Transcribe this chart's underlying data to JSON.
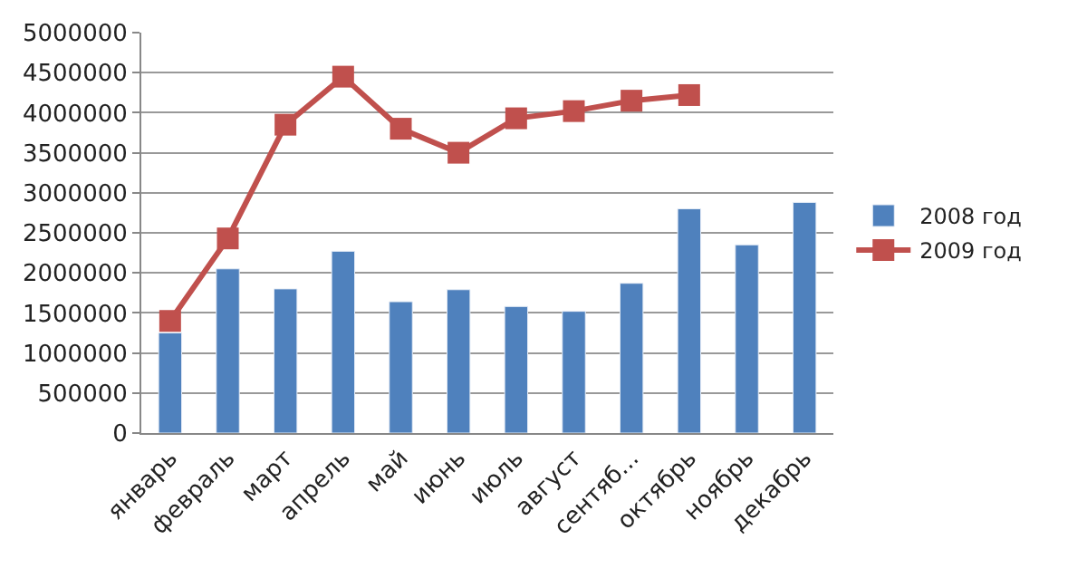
{
  "chart_data": {
    "type": "bar",
    "categories": [
      "январь",
      "февраль",
      "март",
      "апрель",
      "май",
      "июнь",
      "июль",
      "август",
      "сентяб...",
      "октябрь",
      "ноябрь",
      "декабрь"
    ],
    "series": [
      {
        "name": "2008 год",
        "color": "#4f81bd",
        "values": [
          1250000,
          2050000,
          1800000,
          2270000,
          1640000,
          1790000,
          1580000,
          1520000,
          1870000,
          2800000,
          2350000,
          2880000
        ]
      },
      {
        "name": "2009 год",
        "type": "line",
        "color": "#c0504d",
        "marker": "square",
        "values": [
          1400000,
          2430000,
          3850000,
          4450000,
          3800000,
          3500000,
          3930000,
          4020000,
          4150000,
          4220000,
          null,
          null
        ]
      }
    ],
    "ylim": [
      0,
      5000000
    ],
    "yticks": [
      0,
      500000,
      1000000,
      1500000,
      2000000,
      2500000,
      3000000,
      3500000,
      4000000,
      4500000,
      5000000
    ],
    "grid": "y",
    "legend": "right"
  }
}
